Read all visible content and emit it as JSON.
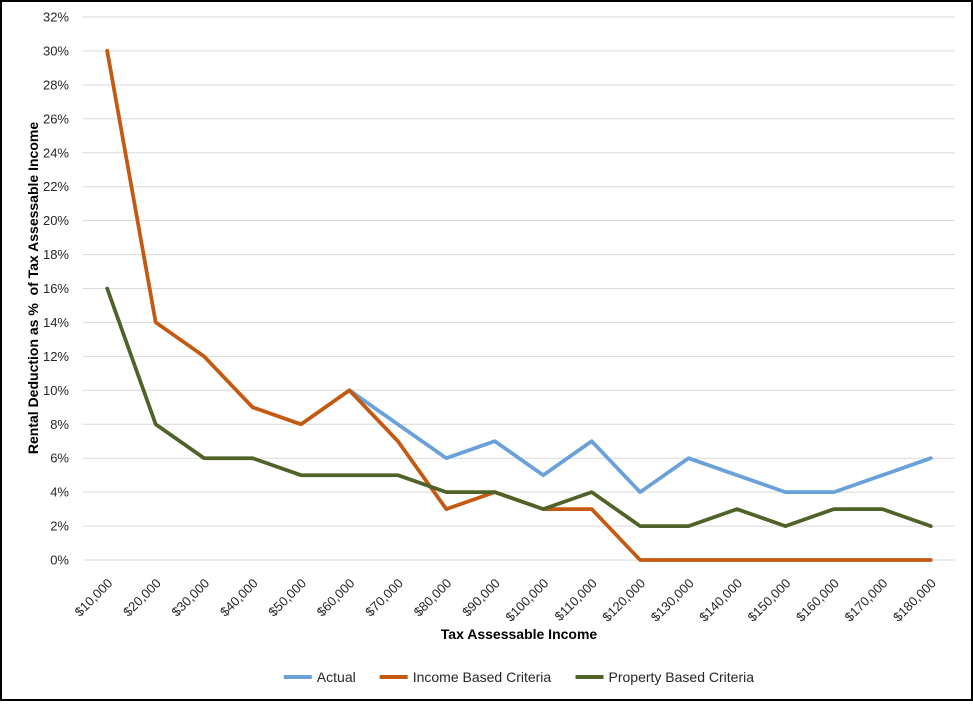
{
  "chart_data": {
    "type": "line",
    "title": "",
    "xlabel": "Tax Assessable Income",
    "ylabel": "Rental Deduction as %  of Tax Assessable Income",
    "categories": [
      "$10,000",
      "$20,000",
      "$30,000",
      "$40,000",
      "$50,000",
      "$60,000",
      "$70,000",
      "$80,000",
      "$90,000",
      "$100,000",
      "$110,000",
      "$120,000",
      "$130,000",
      "$140,000",
      "$150,000",
      "$160,000",
      "$170,000",
      "$180,000"
    ],
    "series": [
      {
        "name": "Actual",
        "color": "#69A1D8",
        "values": [
          null,
          null,
          null,
          null,
          null,
          10,
          8,
          6,
          7,
          5,
          7,
          4,
          6,
          5,
          4,
          4,
          5,
          6
        ]
      },
      {
        "name": "Income Based Criteria",
        "color": "#C45911",
        "values": [
          30,
          14,
          12,
          9,
          8,
          10,
          7,
          3,
          4,
          3,
          3,
          0,
          0,
          0,
          0,
          0,
          0,
          0
        ]
      },
      {
        "name": "Property Based Criteria",
        "color": "#4F6228",
        "values": [
          16,
          8,
          6,
          6,
          5,
          5,
          5,
          4,
          4,
          3,
          4,
          2,
          2,
          3,
          2,
          3,
          3,
          2
        ]
      }
    ],
    "ylim": [
      0,
      32
    ],
    "ytick_step": 2,
    "ytick_labels": [
      "0%",
      "2%",
      "4%",
      "6%",
      "8%",
      "10%",
      "12%",
      "14%",
      "16%",
      "18%",
      "20%",
      "22%",
      "24%",
      "26%",
      "28%",
      "30%",
      "32%"
    ],
    "grid": true,
    "legend_position": "bottom"
  },
  "colors": {
    "background": "#FFFFFF",
    "frame_border": "#000000",
    "gridline": "#D9D9D9",
    "tick_text": "#262626",
    "title_text": "#000000"
  }
}
